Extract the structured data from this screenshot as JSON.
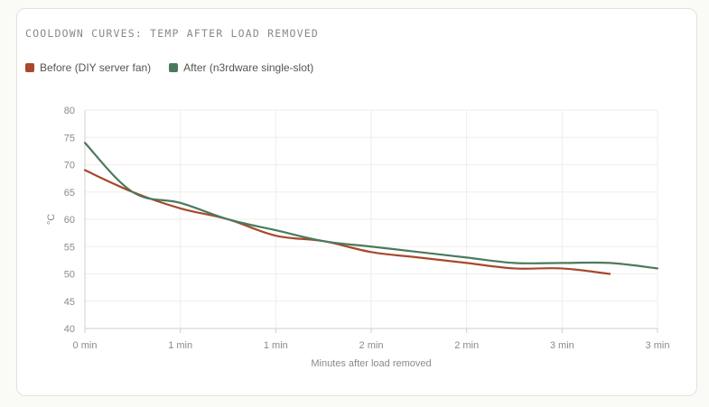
{
  "card": {
    "title": "COOLDOWN CURVES: TEMP AFTER LOAD REMOVED"
  },
  "colors": {
    "before": "#a8482c",
    "after": "#4a7a5c",
    "grid": "#eeeeea",
    "axis": "#cfcfca"
  },
  "chart_data": {
    "type": "line",
    "xlabel": "Minutes after load removed",
    "ylabel": "°C",
    "ylim": [
      40,
      80
    ],
    "yticks": [
      40,
      45,
      50,
      55,
      60,
      65,
      70,
      75,
      80
    ],
    "xlim": [
      0,
      3
    ],
    "xtick_labels": [
      "0 min",
      "1 min",
      "1 min",
      "2 min",
      "2 min",
      "3 min",
      "3 min"
    ],
    "grid": true,
    "legend_position": "top-left",
    "series": [
      {
        "name": "Before (DIY server fan)",
        "color_key": "before",
        "x": [
          0,
          0.25,
          0.5,
          0.75,
          1.0,
          1.25,
          1.5,
          1.75,
          2.0,
          2.25,
          2.5,
          2.75
        ],
        "values": [
          69,
          65,
          62,
          60,
          57,
          56,
          54,
          53,
          52,
          51,
          51,
          50
        ]
      },
      {
        "name": "After (n3rdware single-slot)",
        "color_key": "after",
        "x": [
          0,
          0.25,
          0.5,
          0.75,
          1.0,
          1.25,
          1.5,
          1.75,
          2.0,
          2.25,
          2.5,
          2.75,
          3.0
        ],
        "values": [
          74,
          65,
          63,
          60,
          58,
          56,
          55,
          54,
          53,
          52,
          52,
          52,
          51
        ]
      }
    ]
  }
}
